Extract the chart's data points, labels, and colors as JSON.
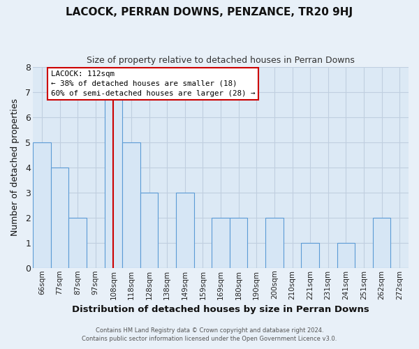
{
  "title": "LACOCK, PERRAN DOWNS, PENZANCE, TR20 9HJ",
  "subtitle": "Size of property relative to detached houses in Perran Downs",
  "xlabel": "Distribution of detached houses by size in Perran Downs",
  "ylabel": "Number of detached properties",
  "bar_color": "#d6e6f5",
  "bar_edge_color": "#5b9bd5",
  "background_color": "#e8f0f8",
  "plot_bg_color": "#dce9f5",
  "grid_color": "#c0cfe0",
  "annotation_line_color": "#cc0000",
  "bins": [
    "66sqm",
    "77sqm",
    "87sqm",
    "97sqm",
    "108sqm",
    "118sqm",
    "128sqm",
    "138sqm",
    "149sqm",
    "159sqm",
    "169sqm",
    "180sqm",
    "190sqm",
    "200sqm",
    "210sqm",
    "221sqm",
    "231sqm",
    "241sqm",
    "251sqm",
    "262sqm",
    "272sqm"
  ],
  "values": [
    5,
    4,
    2,
    0,
    7,
    5,
    3,
    0,
    3,
    0,
    2,
    2,
    0,
    2,
    0,
    1,
    0,
    1,
    0,
    2,
    0
  ],
  "property_bin_index": 4,
  "annotation_title": "LACOCK: 112sqm",
  "annotation_line1": "← 38% of detached houses are smaller (18)",
  "annotation_line2": "60% of semi-detached houses are larger (28) →",
  "ylim": [
    0,
    8
  ],
  "yticks": [
    0,
    1,
    2,
    3,
    4,
    5,
    6,
    7,
    8
  ],
  "footer_line1": "Contains HM Land Registry data © Crown copyright and database right 2024.",
  "footer_line2": "Contains public sector information licensed under the Open Government Licence v3.0."
}
